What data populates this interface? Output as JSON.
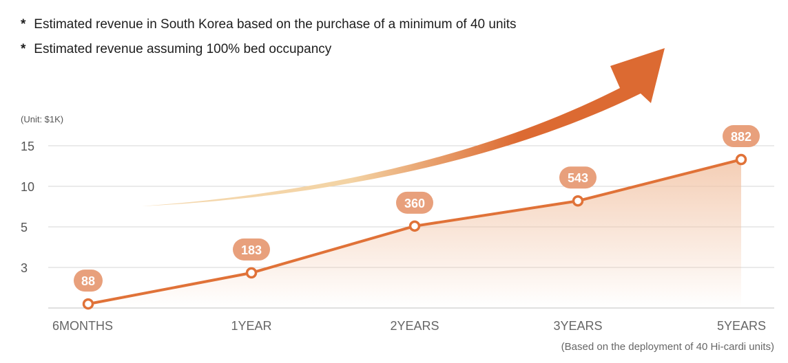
{
  "notes": [
    "Estimated revenue in South Korea based on the purchase of a minimum of 40 units",
    "Estimated revenue assuming 100% bed occupancy"
  ],
  "note_marker": "*",
  "footnote": "(Based on the deployment of 40 Hi-cardi units)",
  "colors": {
    "line": "#e07238",
    "label_bg": "#e8a07c",
    "arrow_start": "#f3d3a4",
    "arrow_end": "#dc6a32",
    "area": "#f2c4a6",
    "grid": "#d4d4d4"
  },
  "chart_data": {
    "type": "line",
    "title": "",
    "unit_label": "(Unit: $1K)",
    "categories": [
      "6MONTHS",
      "1YEAR",
      "2YEARS",
      "3YEARS",
      "5YEARS"
    ],
    "y_ticks": [
      "15",
      "10",
      "5",
      "3"
    ],
    "series": [
      {
        "name": "Estimated revenue",
        "labels": [
          "88",
          "183",
          "360",
          "543",
          "882"
        ],
        "levels": [
          0.3,
          2.6,
          5.1,
          8.2,
          13.3
        ]
      }
    ],
    "level_axis": [
      0,
      1,
      2,
      3,
      4
    ],
    "grid": true,
    "trend_arrow": true
  }
}
